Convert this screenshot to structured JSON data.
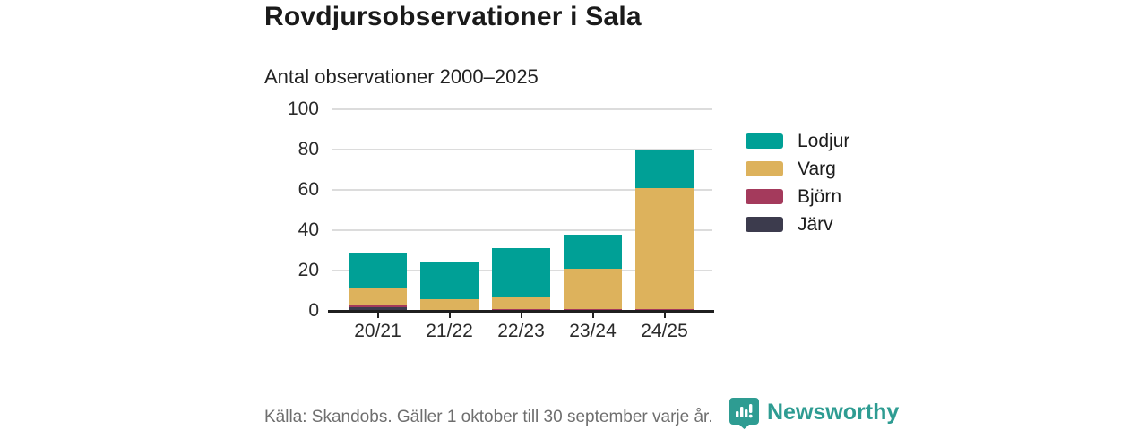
{
  "title": "Rovdjursobservationer i Sala",
  "subtitle": "Antal observationer 2000–2025",
  "footer": {
    "source": "Källa: Skandobs. Gäller 1 oktober till 30 september varje år.",
    "brand": "Newsworthy"
  },
  "colors": {
    "lodjur": "#00a096",
    "varg": "#ddb25c",
    "bjorn": "#a43a5c",
    "jarv": "#3c3b4d",
    "brand_teal": "#2e9c92",
    "grid": "#dcdcdc",
    "axis": "#1f1f1f",
    "text": "#2b2b2b",
    "muted": "#6e6e6e"
  },
  "chart_data": {
    "type": "bar",
    "stacked": true,
    "categories": [
      "20/21",
      "21/22",
      "22/23",
      "23/24",
      "24/25"
    ],
    "series": [
      {
        "name": "Lodjur",
        "color": "#00a096",
        "values": [
          18,
          18,
          24,
          17,
          19
        ]
      },
      {
        "name": "Varg",
        "color": "#ddb25c",
        "values": [
          8,
          6,
          6,
          20,
          60
        ]
      },
      {
        "name": "Björn",
        "color": "#a43a5c",
        "values": [
          1,
          0,
          1,
          1,
          1
        ]
      },
      {
        "name": "Järv",
        "color": "#3c3b4d",
        "values": [
          2,
          0,
          0,
          0,
          0
        ]
      }
    ],
    "totals": [
      29,
      24,
      31,
      38,
      80
    ],
    "title": "Antal observationer 2000–2025",
    "xlabel": "",
    "ylabel": "",
    "ylim": [
      0,
      100
    ],
    "yticks": [
      0,
      20,
      40,
      60,
      80,
      100
    ],
    "grid": true,
    "legend_position": "right"
  }
}
